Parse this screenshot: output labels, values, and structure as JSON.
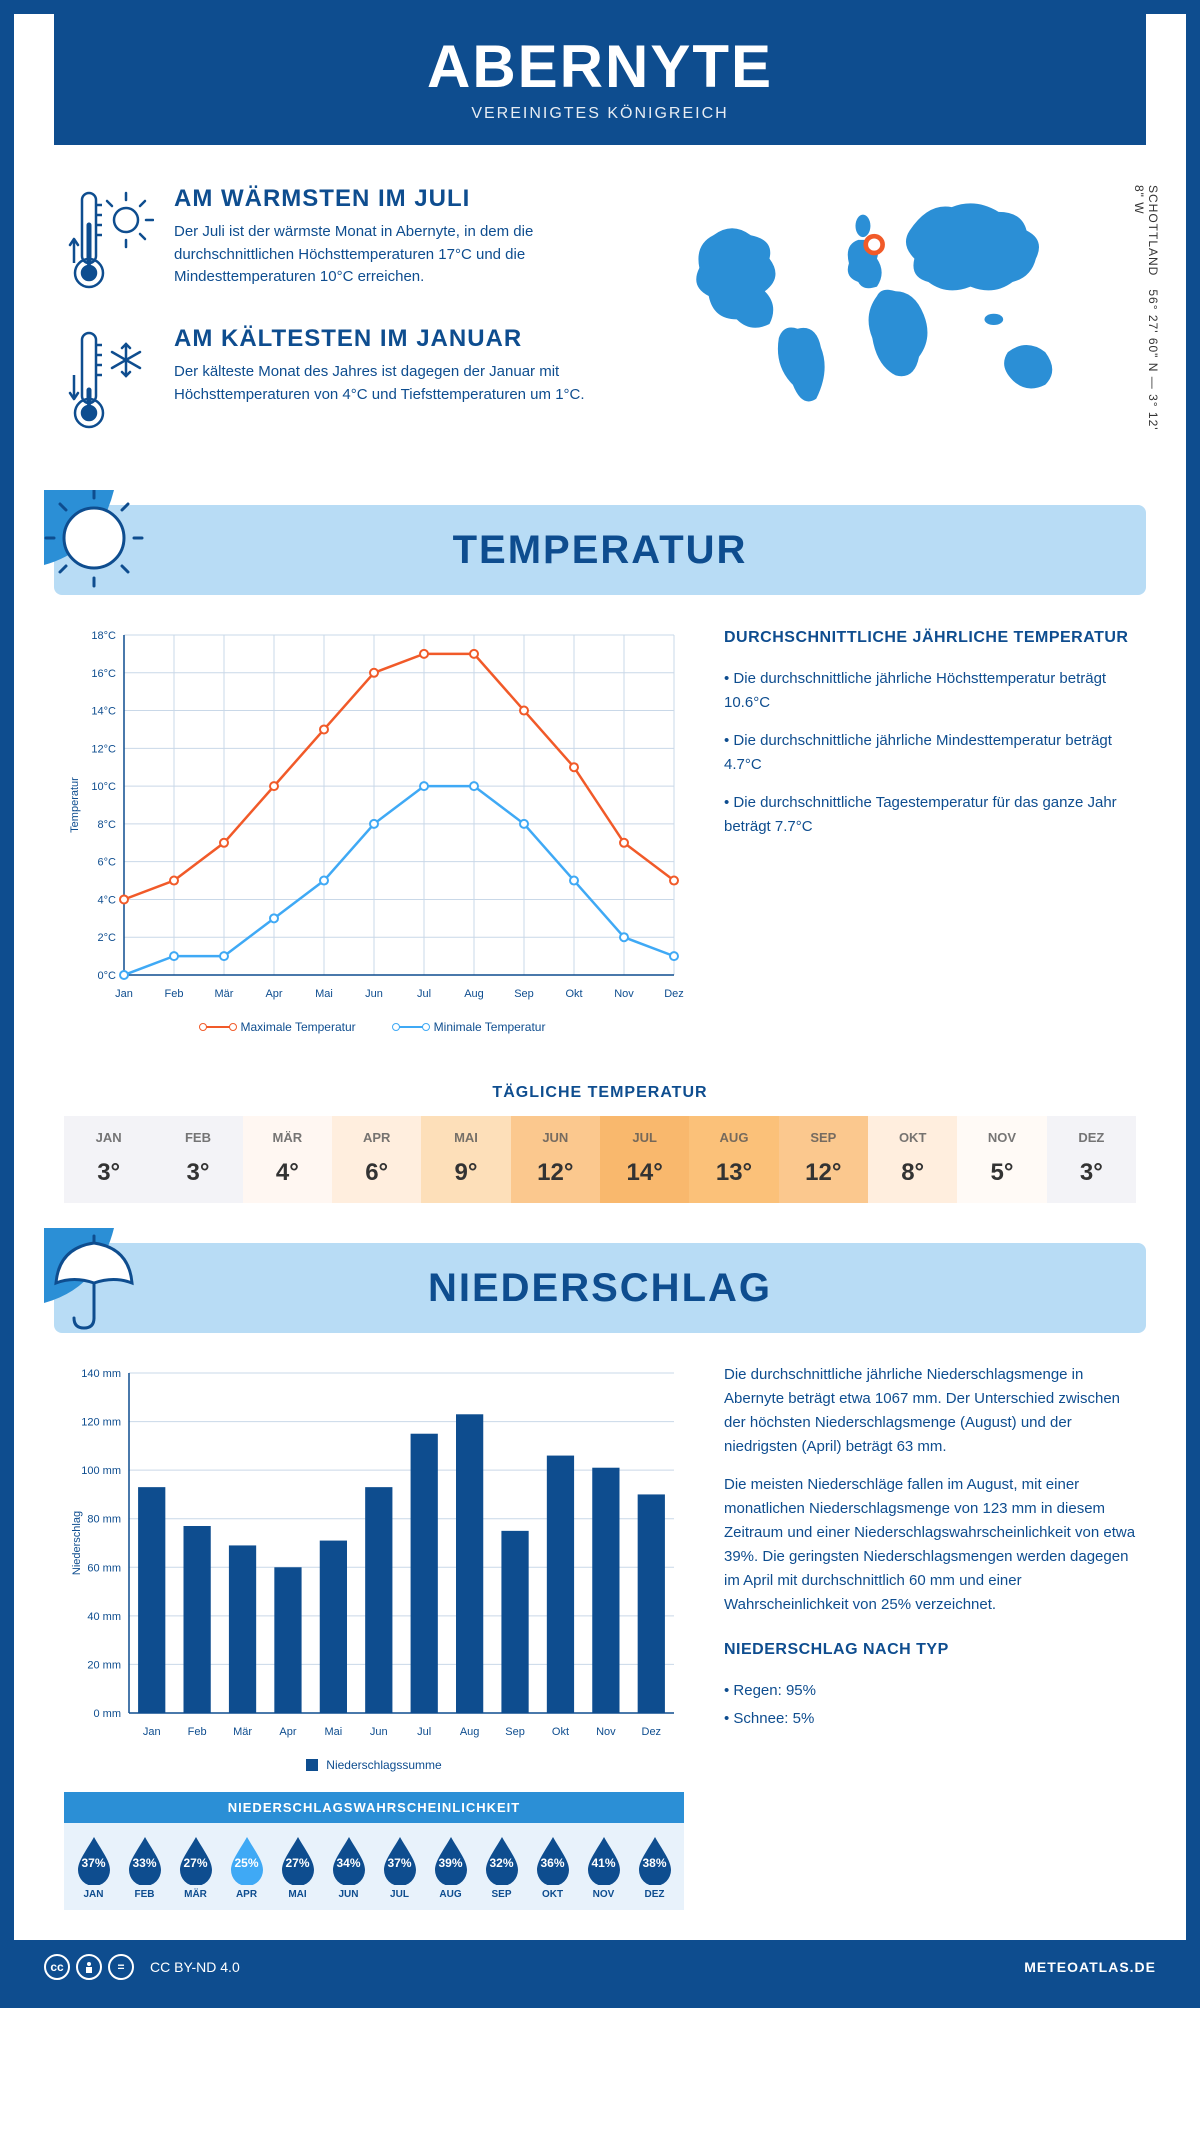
{
  "header": {
    "title": "ABERNYTE",
    "subtitle": "VEREINIGTES KÖNIGREICH"
  },
  "coords": "56° 27' 60\" N — 3° 12' 8\" W",
  "region": "SCHOTTLAND",
  "facts": {
    "warm": {
      "title": "AM WÄRMSTEN IM JULI",
      "text": "Der Juli ist der wärmste Monat in Abernyte, in dem die durchschnittlichen Höchsttemperaturen 17°C und die Mindesttemperaturen 10°C erreichen."
    },
    "cold": {
      "title": "AM KÄLTESTEN IM JANUAR",
      "text": "Der kälteste Monat des Jahres ist dagegen der Januar mit Höchsttemperaturen von 4°C und Tiefsttemperaturen um 1°C."
    }
  },
  "sections": {
    "temp": "TEMPERATUR",
    "precip": "NIEDERSCHLAG"
  },
  "temp_chart": {
    "type": "line",
    "months": [
      "Jan",
      "Feb",
      "Mär",
      "Apr",
      "Mai",
      "Jun",
      "Jul",
      "Aug",
      "Sep",
      "Okt",
      "Nov",
      "Dez"
    ],
    "max": [
      4,
      5,
      7,
      10,
      13,
      16,
      17,
      17,
      14,
      11,
      7,
      5
    ],
    "min": [
      0,
      1,
      1,
      3,
      5,
      8,
      10,
      10,
      8,
      5,
      2,
      1
    ],
    "ylim": [
      0,
      18
    ],
    "ytick_step": 2,
    "y_unit": "°C",
    "ylabel": "Temperatur",
    "max_color": "#f15a29",
    "min_color": "#3fa9f5",
    "grid_color": "#c9d8e8",
    "axis_color": "#0e4d8f",
    "legend_max": "Maximale Temperatur",
    "legend_min": "Minimale Temperatur"
  },
  "temp_text": {
    "heading": "DURCHSCHNITTLICHE JÄHRLICHE TEMPERATUR",
    "b1": "• Die durchschnittliche jährliche Höchsttemperatur beträgt 10.6°C",
    "b2": "• Die durchschnittliche jährliche Mindesttemperatur beträgt 4.7°C",
    "b3": "• Die durchschnittliche Tagestemperatur für das ganze Jahr beträgt 7.7°C"
  },
  "daily": {
    "title": "TÄGLICHE TEMPERATUR",
    "months": [
      "JAN",
      "FEB",
      "MÄR",
      "APR",
      "MAI",
      "JUN",
      "JUL",
      "AUG",
      "SEP",
      "OKT",
      "NOV",
      "DEZ"
    ],
    "values": [
      "3°",
      "3°",
      "4°",
      "6°",
      "9°",
      "12°",
      "14°",
      "13°",
      "12°",
      "8°",
      "5°",
      "3°"
    ],
    "colors": [
      "#f3f3f7",
      "#f3f3f7",
      "#fff7f2",
      "#ffeede",
      "#fddfb9",
      "#fbc88e",
      "#f9b86d",
      "#fbc179",
      "#fbc88e",
      "#ffeede",
      "#fffaf6",
      "#f3f3f7"
    ]
  },
  "precip_chart": {
    "type": "bar",
    "months": [
      "Jan",
      "Feb",
      "Mär",
      "Apr",
      "Mai",
      "Jun",
      "Jul",
      "Aug",
      "Sep",
      "Okt",
      "Nov",
      "Dez"
    ],
    "values": [
      93,
      77,
      69,
      60,
      71,
      93,
      115,
      123,
      75,
      106,
      101,
      90
    ],
    "ylim": [
      0,
      140
    ],
    "ytick_step": 20,
    "y_unit": " mm",
    "ylabel": "Niederschlag",
    "bar_color": "#0e4d8f",
    "grid_color": "#c9d8e8",
    "legend": "Niederschlagssumme"
  },
  "precip_text": {
    "p1": "Die durchschnittliche jährliche Niederschlagsmenge in Abernyte beträgt etwa 1067 mm. Der Unterschied zwischen der höchsten Niederschlagsmenge (August) und der niedrigsten (April) beträgt 63 mm.",
    "p2": "Die meisten Niederschläge fallen im August, mit einer monatlichen Niederschlagsmenge von 123 mm in diesem Zeitraum und einer Niederschlagswahrscheinlichkeit von etwa 39%. Die geringsten Niederschlagsmengen werden dagegen im April mit durchschnittlich 60 mm und einer Wahrscheinlichkeit von 25% verzeichnet.",
    "type_heading": "NIEDERSCHLAG NACH TYP",
    "type1": "• Regen: 95%",
    "type2": "• Schnee: 5%"
  },
  "prob": {
    "title": "NIEDERSCHLAGSWAHRSCHEINLICHKEIT",
    "months": [
      "JAN",
      "FEB",
      "MÄR",
      "APR",
      "MAI",
      "JUN",
      "JUL",
      "AUG",
      "SEP",
      "OKT",
      "NOV",
      "DEZ"
    ],
    "values": [
      "37%",
      "33%",
      "27%",
      "25%",
      "27%",
      "34%",
      "37%",
      "39%",
      "32%",
      "36%",
      "41%",
      "38%"
    ],
    "min_index": 3,
    "drop_color": "#0e4d8f",
    "drop_min_color": "#3fa9f5"
  },
  "footer": {
    "license": "CC BY-ND 4.0",
    "brand": "METEOATLAS.DE"
  },
  "colors": {
    "primary": "#0e4d8f",
    "light_blue": "#b8dcf5",
    "map_blue": "#2b8fd6",
    "marker": "#f15a29"
  }
}
